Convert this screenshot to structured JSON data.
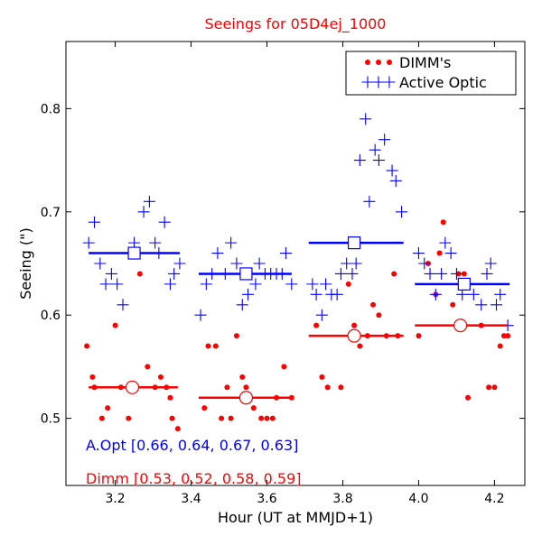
{
  "chart_data": {
    "type": "scatter",
    "title": "Seeings for 05D4ej_1000",
    "xlabel": "Hour (UT at MMJD+1)",
    "ylabel": "Seeing (\")",
    "xlim": [
      3.07,
      4.28
    ],
    "ylim": [
      0.435,
      0.865
    ],
    "xticks": [
      "3.2",
      "3.4",
      "3.6",
      "3.8",
      "4.0",
      "4.2"
    ],
    "yticks": [
      "0.5",
      "0.6",
      "0.7",
      "0.8"
    ],
    "grid": false,
    "legend_position": "top-right",
    "colors": {
      "dimm": "#ff0000",
      "aopt": "#0000ff",
      "title": "#ff0000"
    },
    "series": [
      {
        "name": "DIMM's",
        "marker": "dot",
        "color": "#ff0000",
        "points": [
          [
            3.125,
            0.57
          ],
          [
            3.14,
            0.54
          ],
          [
            3.145,
            0.53
          ],
          [
            3.165,
            0.5
          ],
          [
            3.18,
            0.51
          ],
          [
            3.2,
            0.59
          ],
          [
            3.215,
            0.53
          ],
          [
            3.235,
            0.5
          ],
          [
            3.265,
            0.64
          ],
          [
            3.285,
            0.55
          ],
          [
            3.305,
            0.53
          ],
          [
            3.32,
            0.54
          ],
          [
            3.335,
            0.53
          ],
          [
            3.345,
            0.52
          ],
          [
            3.35,
            0.5
          ],
          [
            3.365,
            0.49
          ],
          [
            3.435,
            0.51
          ],
          [
            3.445,
            0.57
          ],
          [
            3.465,
            0.57
          ],
          [
            3.48,
            0.5
          ],
          [
            3.495,
            0.53
          ],
          [
            3.505,
            0.5
          ],
          [
            3.52,
            0.58
          ],
          [
            3.535,
            0.54
          ],
          [
            3.545,
            0.53
          ],
          [
            3.565,
            0.51
          ],
          [
            3.585,
            0.5
          ],
          [
            3.6,
            0.5
          ],
          [
            3.615,
            0.5
          ],
          [
            3.625,
            0.52
          ],
          [
            3.645,
            0.55
          ],
          [
            3.665,
            0.52
          ],
          [
            3.73,
            0.59
          ],
          [
            3.745,
            0.54
          ],
          [
            3.76,
            0.53
          ],
          [
            3.795,
            0.53
          ],
          [
            3.815,
            0.63
          ],
          [
            3.83,
            0.59
          ],
          [
            3.845,
            0.57
          ],
          [
            3.865,
            0.58
          ],
          [
            3.88,
            0.61
          ],
          [
            3.895,
            0.6
          ],
          [
            3.915,
            0.58
          ],
          [
            3.935,
            0.64
          ],
          [
            3.945,
            0.58
          ],
          [
            4.0,
            0.58
          ],
          [
            4.025,
            0.65
          ],
          [
            4.045,
            0.62
          ],
          [
            4.055,
            0.66
          ],
          [
            4.065,
            0.69
          ],
          [
            4.09,
            0.61
          ],
          [
            4.105,
            0.64
          ],
          [
            4.12,
            0.64
          ],
          [
            4.13,
            0.52
          ],
          [
            4.165,
            0.59
          ],
          [
            4.185,
            0.53
          ],
          [
            4.2,
            0.53
          ],
          [
            4.215,
            0.57
          ],
          [
            4.225,
            0.58
          ],
          [
            4.235,
            0.58
          ]
        ],
        "bins": [
          {
            "x": [
              3.13,
              3.365
            ],
            "value": 0.53,
            "marker_x": 3.245
          },
          {
            "x": [
              3.42,
              3.665
            ],
            "value": 0.52,
            "marker_x": 3.545
          },
          {
            "x": [
              3.71,
              3.96
            ],
            "value": 0.58,
            "marker_x": 3.83
          },
          {
            "x": [
              3.99,
              4.235
            ],
            "value": 0.59,
            "marker_x": 4.11
          }
        ]
      },
      {
        "name": "Active Optic",
        "marker": "plus",
        "color": "#0000ff",
        "points": [
          [
            3.13,
            0.67
          ],
          [
            3.145,
            0.69
          ],
          [
            3.16,
            0.65
          ],
          [
            3.175,
            0.63
          ],
          [
            3.19,
            0.64
          ],
          [
            3.205,
            0.63
          ],
          [
            3.22,
            0.61
          ],
          [
            3.24,
            0.66
          ],
          [
            3.25,
            0.67
          ],
          [
            3.275,
            0.7
          ],
          [
            3.29,
            0.71
          ],
          [
            3.305,
            0.67
          ],
          [
            3.315,
            0.66
          ],
          [
            3.33,
            0.69
          ],
          [
            3.345,
            0.63
          ],
          [
            3.355,
            0.64
          ],
          [
            3.37,
            0.65
          ],
          [
            3.425,
            0.6
          ],
          [
            3.44,
            0.63
          ],
          [
            3.455,
            0.64
          ],
          [
            3.47,
            0.66
          ],
          [
            3.49,
            0.64
          ],
          [
            3.505,
            0.67
          ],
          [
            3.52,
            0.65
          ],
          [
            3.535,
            0.61
          ],
          [
            3.55,
            0.62
          ],
          [
            3.57,
            0.63
          ],
          [
            3.58,
            0.65
          ],
          [
            3.595,
            0.64
          ],
          [
            3.61,
            0.64
          ],
          [
            3.625,
            0.64
          ],
          [
            3.64,
            0.64
          ],
          [
            3.65,
            0.66
          ],
          [
            3.665,
            0.63
          ],
          [
            3.72,
            0.63
          ],
          [
            3.73,
            0.62
          ],
          [
            3.745,
            0.6
          ],
          [
            3.755,
            0.63
          ],
          [
            3.77,
            0.62
          ],
          [
            3.785,
            0.62
          ],
          [
            3.795,
            0.64
          ],
          [
            3.81,
            0.65
          ],
          [
            3.825,
            0.64
          ],
          [
            3.835,
            0.65
          ],
          [
            3.845,
            0.75
          ],
          [
            3.86,
            0.79
          ],
          [
            3.87,
            0.71
          ],
          [
            3.885,
            0.76
          ],
          [
            3.895,
            0.75
          ],
          [
            3.91,
            0.77
          ],
          [
            3.93,
            0.74
          ],
          [
            3.94,
            0.73
          ],
          [
            3.955,
            0.7
          ],
          [
            4.0,
            0.66
          ],
          [
            4.015,
            0.65
          ],
          [
            4.03,
            0.64
          ],
          [
            4.045,
            0.62
          ],
          [
            4.06,
            0.64
          ],
          [
            4.07,
            0.67
          ],
          [
            4.085,
            0.66
          ],
          [
            4.1,
            0.64
          ],
          [
            4.115,
            0.62
          ],
          [
            4.13,
            0.63
          ],
          [
            4.145,
            0.62
          ],
          [
            4.165,
            0.61
          ],
          [
            4.18,
            0.64
          ],
          [
            4.19,
            0.65
          ],
          [
            4.205,
            0.61
          ],
          [
            4.215,
            0.62
          ],
          [
            4.235,
            0.59
          ]
        ],
        "bins": [
          {
            "x": [
              3.13,
              3.37
            ],
            "value": 0.66,
            "marker_x": 3.25
          },
          {
            "x": [
              3.42,
              3.665
            ],
            "value": 0.64,
            "marker_x": 3.545
          },
          {
            "x": [
              3.71,
              3.96
            ],
            "value": 0.67,
            "marker_x": 3.83
          },
          {
            "x": [
              3.99,
              4.24
            ],
            "value": 0.63,
            "marker_x": 4.12
          }
        ]
      }
    ],
    "annotations": [
      {
        "text": "A.Opt [0.66, 0.64, 0.67, 0.63]",
        "color": "#0000ff"
      },
      {
        "text": "Dimm [0.53, 0.52, 0.58, 0.59]",
        "color": "#ff0000"
      }
    ],
    "legend": [
      {
        "label": "DIMM's",
        "marker": "dot",
        "color": "#ff0000"
      },
      {
        "label": "Active Optic",
        "marker": "plus",
        "color": "#0000ff"
      }
    ]
  }
}
